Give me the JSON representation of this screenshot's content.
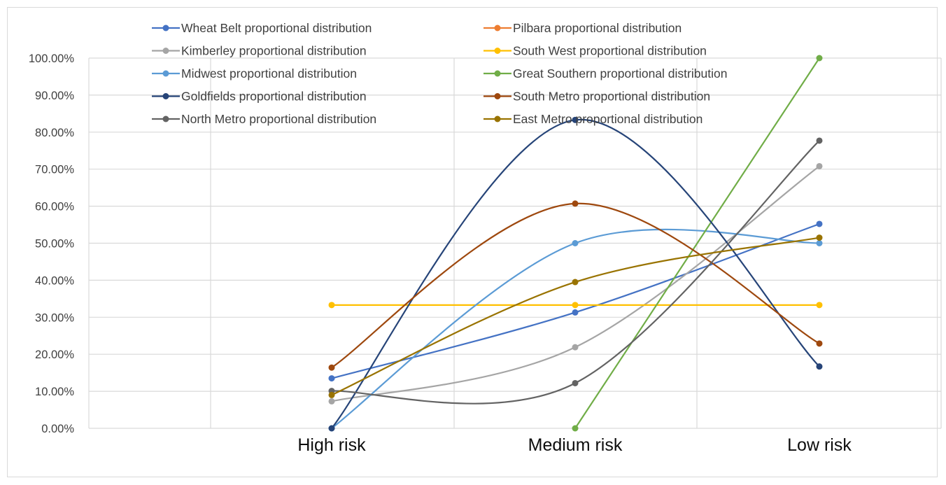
{
  "chart_data": {
    "type": "line",
    "categories": [
      "High risk",
      "Medium risk",
      "Low risk"
    ],
    "y_ticks": [
      "0.00%",
      "10.00%",
      "20.00%",
      "30.00%",
      "40.00%",
      "50.00%",
      "60.00%",
      "70.00%",
      "80.00%",
      "90.00%",
      "100.00%"
    ],
    "ylim": [
      0,
      1
    ],
    "grid": true,
    "smooth": true,
    "legend_position": "top",
    "series": [
      {
        "name": "Wheat Belt proportional distribution",
        "color": "#4472c4",
        "values": [
          0.135,
          0.313,
          0.552
        ]
      },
      {
        "name": "Pilbara proportional distribution",
        "color": "#ed7d31",
        "values": [
          null,
          null,
          null
        ]
      },
      {
        "name": "Kimberley proportional distribution",
        "color": "#a5a5a5",
        "values": [
          0.073,
          0.219,
          0.708
        ]
      },
      {
        "name": "South West proportional distribution",
        "color": "#ffc000",
        "values": [
          0.333,
          0.333,
          0.333
        ]
      },
      {
        "name": "Midwest proportional distribution",
        "color": "#5b9bd5",
        "values": [
          0.0,
          0.5,
          0.5
        ]
      },
      {
        "name": "Great Southern proportional distribution",
        "color": "#70ad47",
        "values": [
          null,
          0.0,
          1.0
        ]
      },
      {
        "name": "Goldfields proportional distribution",
        "color": "#264478",
        "values": [
          0.0,
          0.833,
          0.167
        ]
      },
      {
        "name": "South Metro proportional distribution",
        "color": "#9e480e",
        "values": [
          0.164,
          0.607,
          0.229
        ]
      },
      {
        "name": "North Metro proportional distribution",
        "color": "#636363",
        "values": [
          0.101,
          0.122,
          0.777
        ]
      },
      {
        "name": "East Metro proportional distribution",
        "color": "#997300",
        "values": [
          0.09,
          0.395,
          0.515
        ]
      }
    ]
  }
}
